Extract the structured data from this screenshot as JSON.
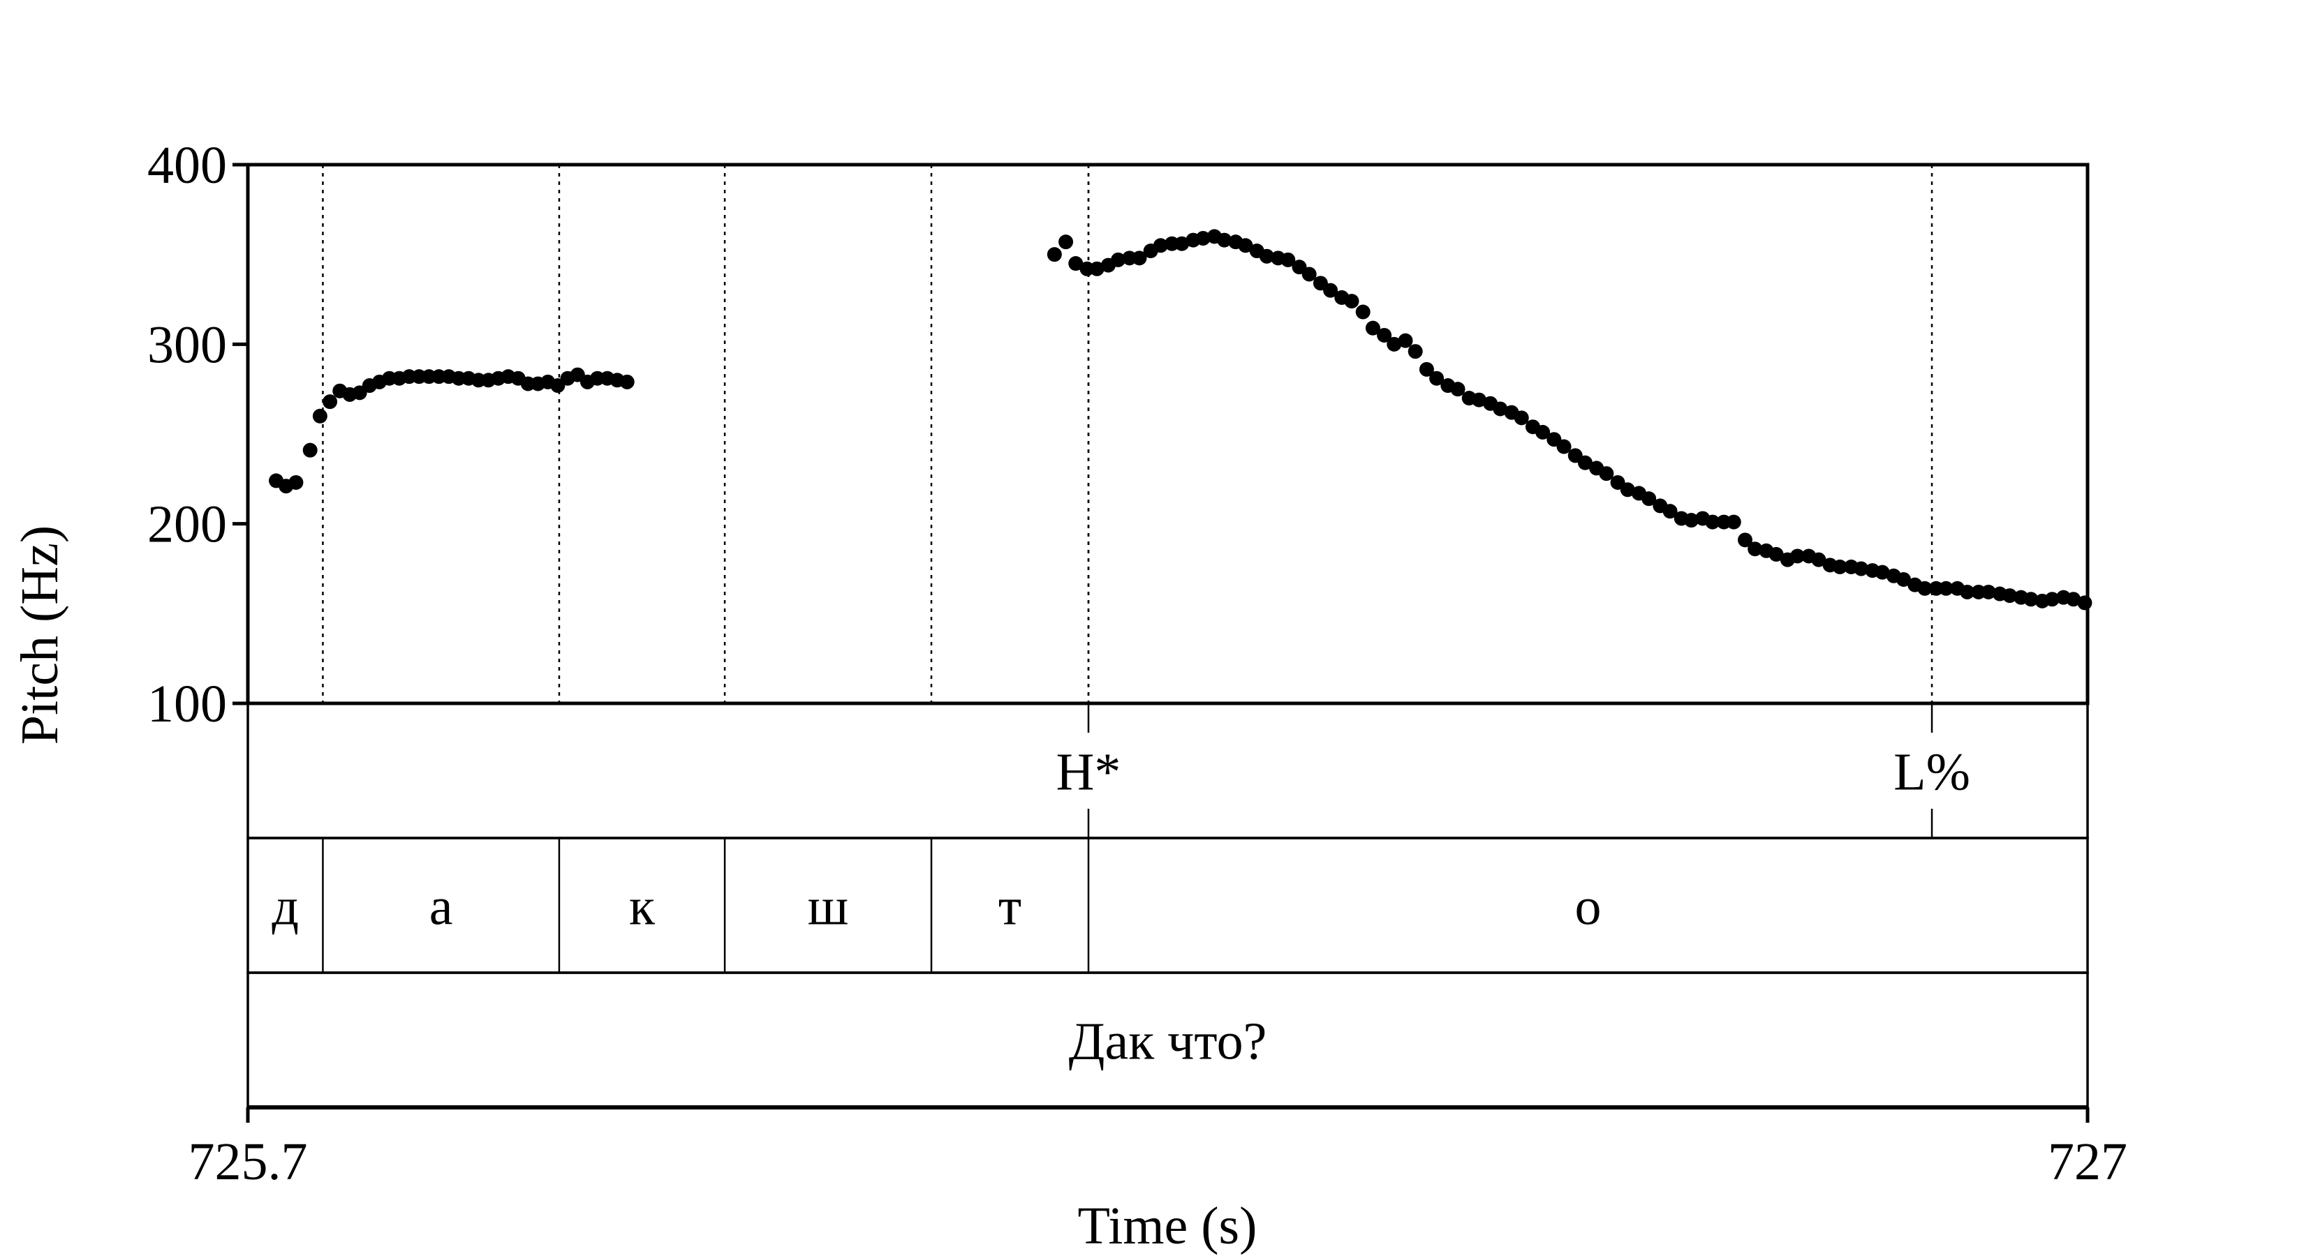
{
  "chart_data": {
    "type": "scatter",
    "xlabel": "Time (s)",
    "ylabel": "Pitch (Hz)",
    "xlim": [
      725.7,
      727
    ],
    "ylim": [
      100,
      400
    ],
    "x_tick_labels": [
      "725.7",
      "727"
    ],
    "y_ticks": [
      100,
      200,
      300,
      400
    ],
    "y_tick_labels": [
      "100",
      "200",
      "300",
      "400"
    ],
    "marker_color": "#000000",
    "series": [
      {
        "points": [
          [
            725.72,
            224
          ],
          [
            725.727,
            221
          ],
          [
            725.734,
            223
          ],
          [
            725.744,
            241
          ],
          [
            725.751,
            260
          ],
          [
            725.758,
            268
          ],
          [
            725.765,
            274
          ],
          [
            725.772,
            272
          ],
          [
            725.779,
            273
          ],
          [
            725.786,
            277
          ],
          [
            725.793,
            279
          ],
          [
            725.8,
            281
          ],
          [
            725.807,
            281
          ],
          [
            725.814,
            282
          ],
          [
            725.821,
            282
          ],
          [
            725.828,
            282
          ],
          [
            725.835,
            282
          ],
          [
            725.842,
            282
          ],
          [
            725.849,
            281
          ],
          [
            725.856,
            281
          ],
          [
            725.863,
            280
          ],
          [
            725.87,
            280
          ],
          [
            725.877,
            281
          ],
          [
            725.884,
            282
          ],
          [
            725.891,
            281
          ],
          [
            725.898,
            278
          ],
          [
            725.905,
            278
          ],
          [
            725.912,
            279
          ],
          [
            725.919,
            277
          ],
          [
            725.926,
            281
          ],
          [
            725.933,
            283
          ],
          [
            725.94,
            279
          ],
          [
            725.947,
            281
          ],
          [
            725.954,
            281
          ],
          [
            725.961,
            280
          ],
          [
            725.968,
            279
          ],
          [
            726.27,
            350
          ],
          [
            726.278,
            357
          ],
          [
            726.285,
            345
          ],
          [
            726.293,
            342
          ],
          [
            726.3,
            342
          ],
          [
            726.308,
            344
          ],
          [
            726.315,
            347
          ],
          [
            726.323,
            348
          ],
          [
            726.33,
            348
          ],
          [
            726.338,
            352
          ],
          [
            726.345,
            355
          ],
          [
            726.353,
            356
          ],
          [
            726.36,
            356
          ],
          [
            726.368,
            358
          ],
          [
            726.375,
            359
          ],
          [
            726.383,
            360
          ],
          [
            726.39,
            358
          ],
          [
            726.398,
            357
          ],
          [
            726.405,
            355
          ],
          [
            726.413,
            352
          ],
          [
            726.42,
            349
          ],
          [
            726.428,
            348
          ],
          [
            726.435,
            347
          ],
          [
            726.443,
            343
          ],
          [
            726.45,
            339
          ],
          [
            726.458,
            334
          ],
          [
            726.465,
            330
          ],
          [
            726.473,
            326
          ],
          [
            726.48,
            324
          ],
          [
            726.488,
            318
          ],
          [
            726.495,
            309
          ],
          [
            726.503,
            305
          ],
          [
            726.51,
            300
          ],
          [
            726.518,
            302
          ],
          [
            726.525,
            296
          ],
          [
            726.533,
            286
          ],
          [
            726.54,
            281
          ],
          [
            726.548,
            277
          ],
          [
            726.555,
            275
          ],
          [
            726.563,
            270
          ],
          [
            726.57,
            269
          ],
          [
            726.578,
            267
          ],
          [
            726.585,
            264
          ],
          [
            726.593,
            262
          ],
          [
            726.6,
            259
          ],
          [
            726.608,
            254
          ],
          [
            726.615,
            251
          ],
          [
            726.623,
            247
          ],
          [
            726.63,
            243
          ],
          [
            726.638,
            238
          ],
          [
            726.645,
            234
          ],
          [
            726.653,
            231
          ],
          [
            726.66,
            228
          ],
          [
            726.668,
            223
          ],
          [
            726.675,
            219
          ],
          [
            726.683,
            217
          ],
          [
            726.69,
            214
          ],
          [
            726.698,
            210
          ],
          [
            726.705,
            207
          ],
          [
            726.713,
            203
          ],
          [
            726.72,
            202
          ],
          [
            726.728,
            203
          ],
          [
            726.735,
            201
          ],
          [
            726.743,
            201
          ],
          [
            726.75,
            201
          ],
          [
            726.758,
            191
          ],
          [
            726.765,
            186
          ],
          [
            726.773,
            185
          ],
          [
            726.78,
            183
          ],
          [
            726.788,
            180
          ],
          [
            726.795,
            182
          ],
          [
            726.803,
            182
          ],
          [
            726.81,
            180
          ],
          [
            726.818,
            177
          ],
          [
            726.825,
            176
          ],
          [
            726.833,
            176
          ],
          [
            726.84,
            175
          ],
          [
            726.848,
            174
          ],
          [
            726.855,
            173
          ],
          [
            726.863,
            171
          ],
          [
            726.87,
            169
          ],
          [
            726.878,
            166
          ],
          [
            726.885,
            164
          ],
          [
            726.893,
            164
          ],
          [
            726.9,
            164
          ],
          [
            726.908,
            164
          ],
          [
            726.915,
            162
          ],
          [
            726.923,
            162
          ],
          [
            726.93,
            162
          ],
          [
            726.938,
            161
          ],
          [
            726.945,
            160
          ],
          [
            726.953,
            159
          ],
          [
            726.96,
            158
          ],
          [
            726.968,
            157
          ],
          [
            726.975,
            158
          ],
          [
            726.983,
            159
          ],
          [
            726.99,
            158
          ],
          [
            726.998,
            156
          ]
        ]
      }
    ],
    "tiers": [
      {
        "name": "tones",
        "type": "point",
        "items": [
          {
            "time": 726.294,
            "label": "H*"
          },
          {
            "time": 726.89,
            "label": "L%"
          }
        ]
      },
      {
        "name": "segments",
        "type": "interval",
        "boundaries": [
          725.7,
          725.753,
          725.92,
          726.037,
          726.183,
          726.294,
          727.0
        ],
        "labels": [
          "д",
          "а",
          "к",
          "ш",
          "т",
          "о"
        ]
      },
      {
        "name": "words",
        "type": "interval",
        "boundaries": [
          725.7,
          727.0
        ],
        "labels": [
          "Дак что?"
        ]
      }
    ]
  }
}
